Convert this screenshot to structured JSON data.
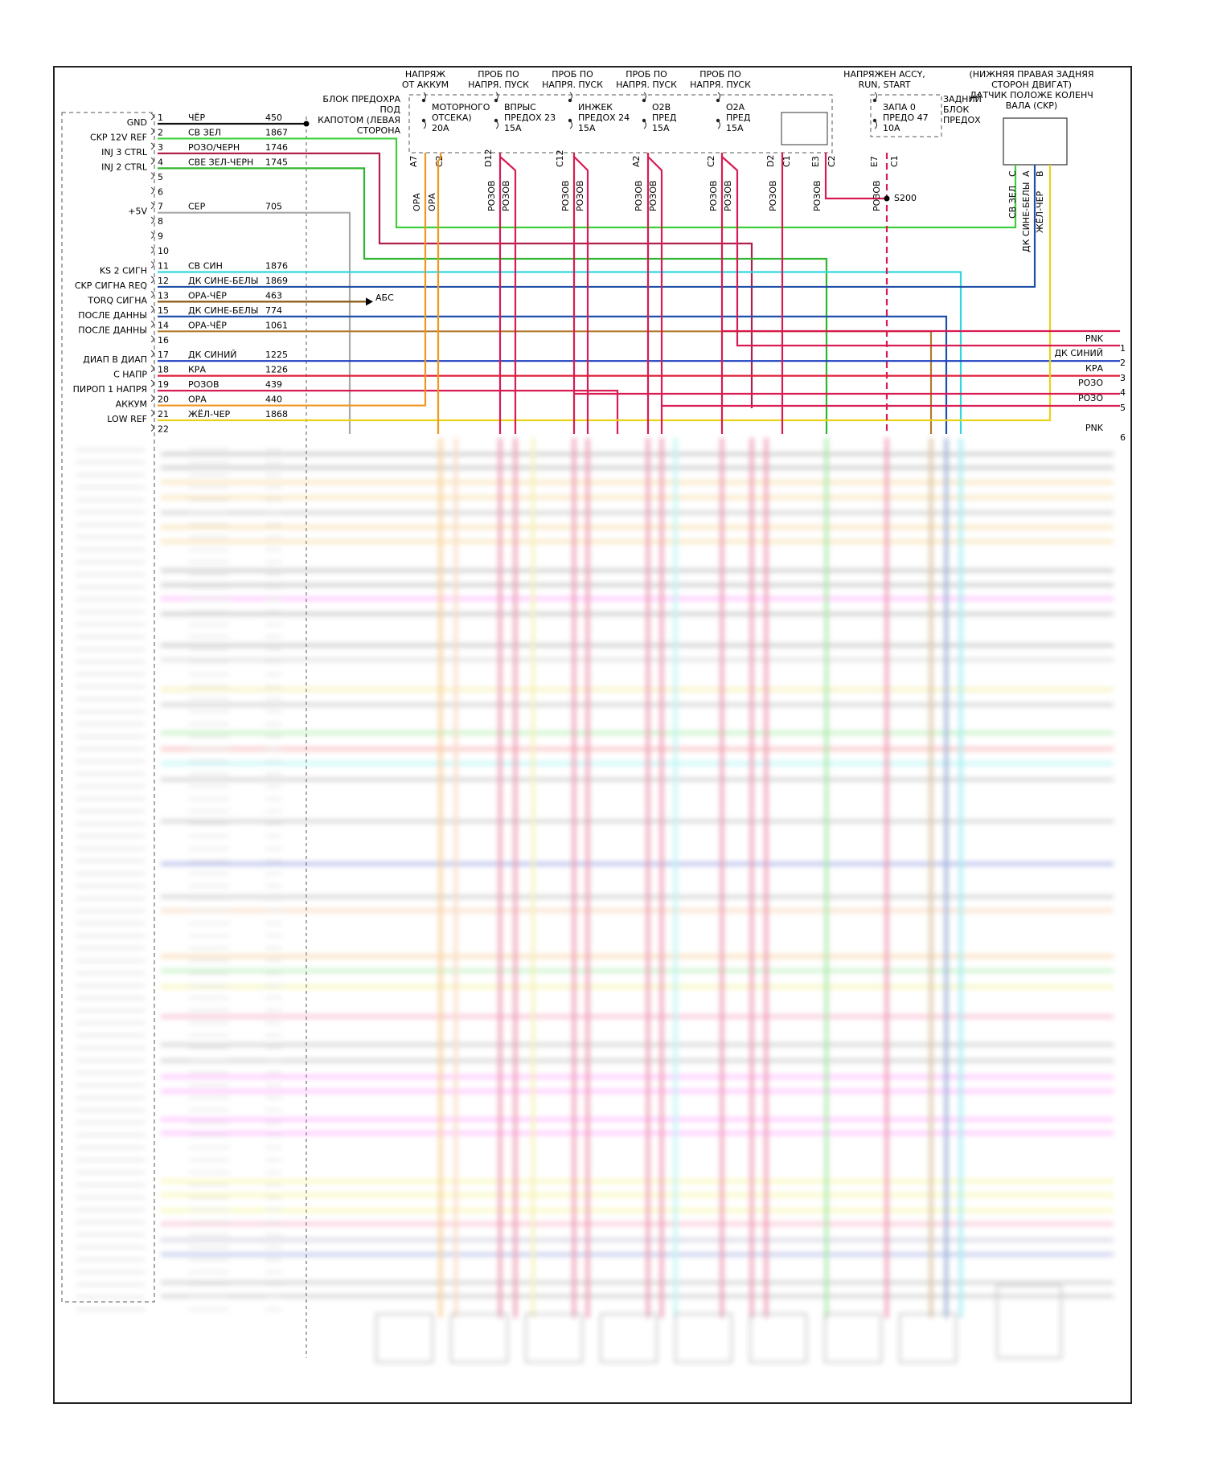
{
  "fuse_headers": [
    {
      "id": "h_batt",
      "lines": [
        "НАПРЯЖ",
        "ОТ АККУМ"
      ]
    },
    {
      "id": "h_p1",
      "lines": [
        "ПРОБ ПО",
        "НАПРЯ. ПУСК"
      ]
    },
    {
      "id": "h_p2",
      "lines": [
        "ПРОБ ПО",
        "НАПРЯ. ПУСК"
      ]
    },
    {
      "id": "h_p3",
      "lines": [
        "ПРОБ ПО",
        "НАПРЯ. ПУСК"
      ]
    },
    {
      "id": "h_p4",
      "lines": [
        "ПРОБ ПО",
        "НАПРЯ. ПУСК"
      ]
    },
    {
      "id": "h_accy",
      "lines": [
        "НАПРЯЖЕН ACCY,",
        "RUN, START"
      ]
    },
    {
      "id": "h_ckp",
      "lines": [
        "(НИЖНЯЯ ПРАВАЯ ЗАДНЯЯ",
        "СТОРОН ДВИГАТ)",
        "ДАТЧИК ПОЛОЖЕ КОЛЕНЧ",
        "ВАЛА (CKP)"
      ]
    }
  ],
  "fuse_block_label": [
    "БЛОК ПРЕДОХРА",
    "ПОД",
    "КАПОТОМ (ЛЕВАЯ",
    "СТОРОНА"
  ],
  "rear_block_label": [
    "ЗАДНИЙ",
    "БЛОК",
    "ПРЕДОХ"
  ],
  "fuses": [
    {
      "lines": [
        "МОТОРНОГО",
        "ОТСЕКА)",
        "20A"
      ]
    },
    {
      "lines": [
        "ВПРЫС",
        "ПРЕДОХ 23",
        "15A"
      ]
    },
    {
      "lines": [
        "ИНЖЕК",
        "ПРЕДОХ 24",
        "15A"
      ]
    },
    {
      "lines": [
        "O2B",
        "ПРЕД",
        "15A"
      ]
    },
    {
      "lines": [
        "O2A",
        "ПРЕД",
        "15A"
      ]
    },
    {
      "lines": [
        "ЗАПА 0",
        "ПРЕДО 47",
        "10A"
      ]
    }
  ],
  "connector_pins": [
    "A7",
    "C2",
    "D12",
    "C12",
    "A2",
    "C2",
    "D2",
    "C1",
    "E3",
    "C2",
    "E7",
    "C1"
  ],
  "vertical_wire_labels": [
    "ОРА",
    "ОРА",
    "РОЗОВ",
    "РОЗОВ",
    "РОЗОВ",
    "РОЗОВ",
    "РОЗОВ",
    "РОЗОВ",
    "РОЗОВ",
    "РОЗОВ",
    "РОЗОВ",
    "РОЗОВ",
    "РОЗОВ"
  ],
  "splice_label": "S200",
  "ckp_pins": [
    "C",
    "A",
    "B"
  ],
  "ckp_wire_labels": [
    "СВ ЗЕЛ",
    "ДК СИНЕ-БЕЛЫ",
    "ЖЁЛ-ЧЕР"
  ],
  "ecm_rows": [
    {
      "pin": "1",
      "label": "GND",
      "wire": "ЧЁР",
      "circuit": "450",
      "color": "#111111"
    },
    {
      "pin": "2",
      "label": "CKP 12V REF",
      "wire": "СВ ЗЕЛ",
      "circuit": "1867",
      "color": "#3ecf3e"
    },
    {
      "pin": "3",
      "label": "INJ 3 CTRL",
      "wire": "РОЗО/ЧЕРН",
      "circuit": "1746",
      "color": "#b0204a"
    },
    {
      "pin": "4",
      "label": "INJ 2 CTRL",
      "wire": "СВЕ ЗЕЛ-ЧЕРН",
      "circuit": "1745",
      "color": "#2fb52f"
    },
    {
      "pin": "5",
      "label": "",
      "wire": "",
      "circuit": "",
      "color": ""
    },
    {
      "pin": "6",
      "label": "",
      "wire": "",
      "circuit": "",
      "color": ""
    },
    {
      "pin": "7",
      "label": "+5V",
      "wire": "СЕР",
      "circuit": "705",
      "color": "#a8a8a8"
    },
    {
      "pin": "8",
      "label": "",
      "wire": "",
      "circuit": "",
      "color": ""
    },
    {
      "pin": "9",
      "label": "",
      "wire": "",
      "circuit": "",
      "color": ""
    },
    {
      "pin": "10",
      "label": "",
      "wire": "",
      "circuit": "",
      "color": ""
    },
    {
      "pin": "11",
      "label": "KS 2 СИГН",
      "wire": "СВ СИН",
      "circuit": "1876",
      "color": "#33d6e0"
    },
    {
      "pin": "12",
      "label": "CKP СИГНА REQ",
      "wire": "ДК СИНЕ-БЕЛЫ",
      "circuit": "1869",
      "color": "#1f4fa8"
    },
    {
      "pin": "13",
      "label": "TORQ СИГНА",
      "wire": "ОРА-ЧЁР",
      "circuit": "463",
      "color": "#8a5a10"
    },
    {
      "pin": "15",
      "label": "ПОСЛЕ ДАННЫ",
      "wire": "ДК СИНЕ-БЕЛЫ",
      "circuit": "774",
      "color": "#1f4fa8"
    },
    {
      "pin": "14",
      "label": "ПОСЛЕ ДАННЫ",
      "wire": "ОРА-ЧЁР",
      "circuit": "1061",
      "color": "#b07a30"
    },
    {
      "pin": "16",
      "label": "",
      "wire": "",
      "circuit": "",
      "color": ""
    },
    {
      "pin": "17",
      "label": "ДИАП В ДИАП",
      "wire": "ДК СИНИЙ",
      "circuit": "1225",
      "color": "#1f3fbf"
    },
    {
      "pin": "18",
      "label": "С НАПР",
      "wire": "КРА",
      "circuit": "1226",
      "color": "#e0203a"
    },
    {
      "pin": "19",
      "label": "ПИРОП 1 НАПРЯ",
      "wire": "РОЗОВ",
      "circuit": "439",
      "color": "#d81b52"
    },
    {
      "pin": "20",
      "label": "АККУМ",
      "wire": "ОРА",
      "circuit": "440",
      "color": "#f0961e"
    },
    {
      "pin": "21",
      "label": "LOW REF",
      "wire": "ЖЁЛ-ЧЕР",
      "circuit": "1868",
      "color": "#e8d21e"
    },
    {
      "pin": "22",
      "label": "",
      "wire": "",
      "circuit": "",
      "color": ""
    }
  ],
  "abs_label": "АБС",
  "right_outputs": [
    {
      "label": "PNK",
      "num": "1"
    },
    {
      "label": "ДК СИНИЙ",
      "num": "2"
    },
    {
      "label": "КРА",
      "num": "3"
    },
    {
      "label": "РОЗО",
      "num": "4"
    },
    {
      "label": "РОЗО",
      "num": "5"
    },
    {
      "label": "PNK",
      "num": "6"
    }
  ]
}
